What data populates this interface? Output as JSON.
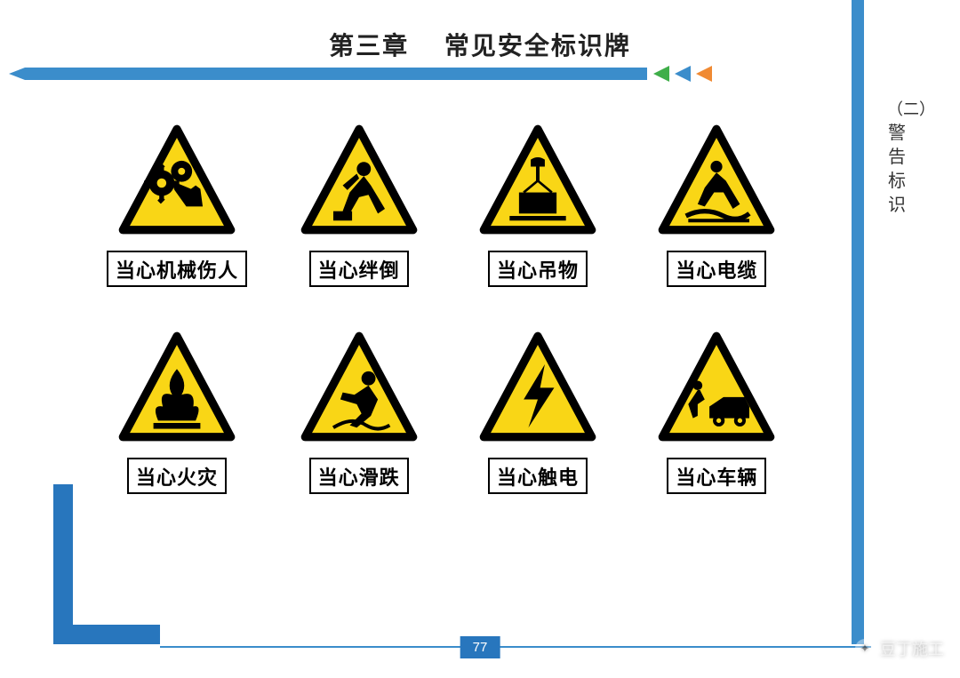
{
  "heading": "第三章 常见安全标识牌",
  "section_label_prefix": "（二）",
  "section_label": "警告标识",
  "page_number": "77",
  "watermark": "豆丁施工",
  "colors": {
    "rule_blue": "#3b8dcb",
    "accent_blue": "#2876bd",
    "chevron_green": "#3fae49",
    "chevron_blue": "#3b8dcb",
    "chevron_orange": "#f08a33",
    "sign_yellow": "#f9d616",
    "sign_border": "#000000",
    "label_border": "#000000",
    "text": "#222222",
    "background": "#ffffff"
  },
  "chevron_order": [
    "chevron_green",
    "chevron_blue",
    "chevron_orange"
  ],
  "signs": [
    {
      "label": "当心机械伤人",
      "icon": "gears-hand"
    },
    {
      "label": "当心绊倒",
      "icon": "trip"
    },
    {
      "label": "当心吊物",
      "icon": "overhead-load"
    },
    {
      "label": "当心电缆",
      "icon": "cable-trip"
    },
    {
      "label": "当心火灾",
      "icon": "fire"
    },
    {
      "label": "当心滑跌",
      "icon": "slip"
    },
    {
      "label": "当心触电",
      "icon": "electric"
    },
    {
      "label": "当心车辆",
      "icon": "vehicle"
    }
  ],
  "sign_style": {
    "triangle_border_width": 8,
    "label_fontsize": 22,
    "grid_cols": 4,
    "grid_rows": 2
  }
}
